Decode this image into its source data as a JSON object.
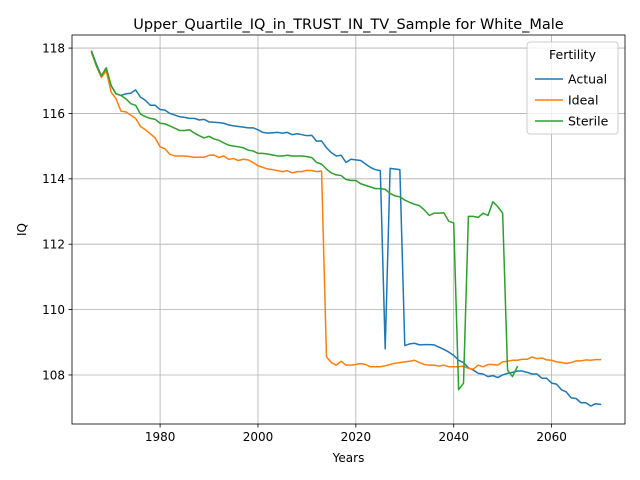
{
  "chart_data": {
    "type": "line",
    "title": "Upper_Quartile_IQ_in_TRUST_IN_TV_Sample for White_Male",
    "xlabel": "Years",
    "ylabel": "IQ",
    "xlim": [
      1962,
      2075
    ],
    "ylim": [
      106.5,
      118.4
    ],
    "xticks": [
      1980,
      2000,
      2020,
      2040,
      2060
    ],
    "yticks": [
      108,
      110,
      112,
      114,
      116,
      118
    ],
    "grid": true,
    "legend": {
      "title": "Fertility",
      "placement": "top-right",
      "entries": [
        "Actual",
        "Ideal",
        "Sterile"
      ]
    },
    "colors": {
      "Actual": "#1f77b4",
      "Ideal": "#ff7f0e",
      "Sterile": "#2ca02c"
    },
    "series": [
      {
        "name": "Actual",
        "points": [
          [
            1966,
            117.9
          ],
          [
            1967,
            117.5
          ],
          [
            1968,
            117.15
          ],
          [
            1969,
            117.35
          ],
          [
            1970,
            116.85
          ],
          [
            1971,
            116.6
          ],
          [
            1972,
            116.55
          ],
          [
            1973,
            116.6
          ],
          [
            1974,
            116.62
          ],
          [
            1975,
            116.72
          ],
          [
            1976,
            116.5
          ],
          [
            1977,
            116.4
          ],
          [
            1978,
            116.25
          ],
          [
            1979,
            116.25
          ],
          [
            1980,
            116.12
          ],
          [
            1981,
            116.1
          ],
          [
            1982,
            116.0
          ],
          [
            1983,
            115.95
          ],
          [
            1984,
            115.9
          ],
          [
            1985,
            115.88
          ],
          [
            1986,
            115.85
          ],
          [
            1987,
            115.85
          ],
          [
            1988,
            115.8
          ],
          [
            1989,
            115.82
          ],
          [
            1990,
            115.74
          ],
          [
            1991,
            115.73
          ],
          [
            1992,
            115.72
          ],
          [
            1993,
            115.7
          ],
          [
            1994,
            115.65
          ],
          [
            1995,
            115.62
          ],
          [
            1996,
            115.6
          ],
          [
            1997,
            115.58
          ],
          [
            1998,
            115.56
          ],
          [
            1999,
            115.56
          ],
          [
            2000,
            115.5
          ],
          [
            2001,
            115.42
          ],
          [
            2002,
            115.4
          ],
          [
            2003,
            115.41
          ],
          [
            2004,
            115.42
          ],
          [
            2005,
            115.4
          ],
          [
            2006,
            115.42
          ],
          [
            2007,
            115.35
          ],
          [
            2008,
            115.38
          ],
          [
            2009,
            115.35
          ],
          [
            2010,
            115.32
          ],
          [
            2011,
            115.33
          ],
          [
            2012,
            115.15
          ],
          [
            2013,
            115.16
          ],
          [
            2014,
            114.95
          ],
          [
            2015,
            114.8
          ],
          [
            2016,
            114.7
          ],
          [
            2017,
            114.72
          ],
          [
            2018,
            114.5
          ],
          [
            2019,
            114.6
          ],
          [
            2020,
            114.58
          ],
          [
            2021,
            114.56
          ],
          [
            2022,
            114.45
          ],
          [
            2023,
            114.35
          ],
          [
            2024,
            114.28
          ],
          [
            2025,
            114.25
          ],
          [
            2026,
            108.8
          ],
          [
            2027,
            114.32
          ],
          [
            2028,
            114.3
          ],
          [
            2029,
            114.28
          ],
          [
            2030,
            108.9
          ],
          [
            2031,
            108.95
          ],
          [
            2032,
            108.97
          ],
          [
            2033,
            108.92
          ],
          [
            2034,
            108.93
          ],
          [
            2035,
            108.93
          ],
          [
            2036,
            108.92
          ],
          [
            2037,
            108.85
          ],
          [
            2038,
            108.78
          ],
          [
            2039,
            108.7
          ],
          [
            2040,
            108.6
          ],
          [
            2041,
            108.45
          ],
          [
            2042,
            108.38
          ],
          [
            2043,
            108.22
          ],
          [
            2044,
            108.15
          ],
          [
            2045,
            108.05
          ],
          [
            2046,
            108.03
          ],
          [
            2047,
            107.95
          ],
          [
            2048,
            107.98
          ],
          [
            2049,
            107.92
          ],
          [
            2050,
            108.0
          ],
          [
            2051,
            108.05
          ],
          [
            2052,
            108.08
          ],
          [
            2053,
            108.12
          ],
          [
            2054,
            108.12
          ],
          [
            2055,
            108.08
          ],
          [
            2056,
            108.03
          ],
          [
            2057,
            108.03
          ],
          [
            2058,
            107.9
          ],
          [
            2059,
            107.9
          ],
          [
            2060,
            107.75
          ],
          [
            2061,
            107.72
          ],
          [
            2062,
            107.55
          ],
          [
            2063,
            107.48
          ],
          [
            2064,
            107.3
          ],
          [
            2065,
            107.28
          ],
          [
            2066,
            107.15
          ],
          [
            2067,
            107.15
          ],
          [
            2068,
            107.05
          ],
          [
            2069,
            107.12
          ],
          [
            2070,
            107.1
          ]
        ]
      },
      {
        "name": "Ideal",
        "points": [
          [
            1966,
            117.85
          ],
          [
            1967,
            117.45
          ],
          [
            1968,
            117.1
          ],
          [
            1969,
            117.3
          ],
          [
            1970,
            116.65
          ],
          [
            1971,
            116.45
          ],
          [
            1972,
            116.07
          ],
          [
            1973,
            116.05
          ],
          [
            1974,
            115.95
          ],
          [
            1975,
            115.85
          ],
          [
            1976,
            115.6
          ],
          [
            1977,
            115.5
          ],
          [
            1978,
            115.38
          ],
          [
            1979,
            115.25
          ],
          [
            1980,
            114.98
          ],
          [
            1981,
            114.92
          ],
          [
            1982,
            114.75
          ],
          [
            1983,
            114.7
          ],
          [
            1984,
            114.7
          ],
          [
            1985,
            114.7
          ],
          [
            1986,
            114.68
          ],
          [
            1987,
            114.66
          ],
          [
            1988,
            114.66
          ],
          [
            1989,
            114.66
          ],
          [
            1990,
            114.72
          ],
          [
            1991,
            114.73
          ],
          [
            1992,
            114.65
          ],
          [
            1993,
            114.7
          ],
          [
            1994,
            114.6
          ],
          [
            1995,
            114.62
          ],
          [
            1996,
            114.56
          ],
          [
            1997,
            114.6
          ],
          [
            1998,
            114.58
          ],
          [
            1999,
            114.5
          ],
          [
            2000,
            114.4
          ],
          [
            2001,
            114.35
          ],
          [
            2002,
            114.3
          ],
          [
            2003,
            114.28
          ],
          [
            2004,
            114.25
          ],
          [
            2005,
            114.22
          ],
          [
            2006,
            114.25
          ],
          [
            2007,
            114.18
          ],
          [
            2008,
            114.22
          ],
          [
            2009,
            114.22
          ],
          [
            2010,
            114.26
          ],
          [
            2011,
            114.25
          ],
          [
            2012,
            114.22
          ],
          [
            2013,
            114.24
          ],
          [
            2014,
            108.55
          ],
          [
            2015,
            108.38
          ],
          [
            2016,
            108.3
          ],
          [
            2017,
            108.42
          ],
          [
            2018,
            108.3
          ],
          [
            2019,
            108.3
          ],
          [
            2020,
            108.32
          ],
          [
            2021,
            108.35
          ],
          [
            2022,
            108.32
          ],
          [
            2023,
            108.25
          ],
          [
            2024,
            108.25
          ],
          [
            2025,
            108.25
          ],
          [
            2026,
            108.28
          ],
          [
            2027,
            108.32
          ],
          [
            2028,
            108.36
          ],
          [
            2029,
            108.38
          ],
          [
            2030,
            108.4
          ],
          [
            2031,
            108.42
          ],
          [
            2032,
            108.45
          ],
          [
            2033,
            108.38
          ],
          [
            2034,
            108.32
          ],
          [
            2035,
            108.3
          ],
          [
            2036,
            108.3
          ],
          [
            2037,
            108.27
          ],
          [
            2038,
            108.3
          ],
          [
            2039,
            108.25
          ],
          [
            2040,
            108.25
          ],
          [
            2041,
            108.25
          ],
          [
            2042,
            108.27
          ],
          [
            2043,
            108.2
          ],
          [
            2044,
            108.18
          ],
          [
            2045,
            108.3
          ],
          [
            2046,
            108.25
          ],
          [
            2047,
            108.32
          ],
          [
            2048,
            108.32
          ],
          [
            2049,
            108.3
          ],
          [
            2050,
            108.4
          ],
          [
            2051,
            108.42
          ],
          [
            2052,
            108.45
          ],
          [
            2053,
            108.45
          ],
          [
            2054,
            108.48
          ],
          [
            2055,
            108.48
          ],
          [
            2056,
            108.55
          ],
          [
            2057,
            108.5
          ],
          [
            2058,
            108.52
          ],
          [
            2059,
            108.46
          ],
          [
            2060,
            108.45
          ],
          [
            2061,
            108.4
          ],
          [
            2062,
            108.38
          ],
          [
            2063,
            108.35
          ],
          [
            2064,
            108.38
          ],
          [
            2065,
            108.43
          ],
          [
            2066,
            108.43
          ],
          [
            2067,
            108.46
          ],
          [
            2068,
            108.45
          ],
          [
            2069,
            108.47
          ],
          [
            2070,
            108.47
          ]
        ]
      },
      {
        "name": "Sterile",
        "points": [
          [
            1966,
            117.9
          ],
          [
            1967,
            117.45
          ],
          [
            1968,
            117.15
          ],
          [
            1969,
            117.4
          ],
          [
            1970,
            116.85
          ],
          [
            1971,
            116.6
          ],
          [
            1972,
            116.55
          ],
          [
            1973,
            116.45
          ],
          [
            1974,
            116.3
          ],
          [
            1975,
            116.25
          ],
          [
            1976,
            115.98
          ],
          [
            1977,
            115.9
          ],
          [
            1978,
            115.85
          ],
          [
            1979,
            115.82
          ],
          [
            1980,
            115.7
          ],
          [
            1981,
            115.68
          ],
          [
            1982,
            115.62
          ],
          [
            1983,
            115.55
          ],
          [
            1984,
            115.48
          ],
          [
            1985,
            115.48
          ],
          [
            1986,
            115.5
          ],
          [
            1987,
            115.4
          ],
          [
            1988,
            115.32
          ],
          [
            1989,
            115.25
          ],
          [
            1990,
            115.3
          ],
          [
            1991,
            115.22
          ],
          [
            1992,
            115.18
          ],
          [
            1993,
            115.1
          ],
          [
            1994,
            115.03
          ],
          [
            1995,
            115.0
          ],
          [
            1996,
            114.98
          ],
          [
            1997,
            114.95
          ],
          [
            1998,
            114.88
          ],
          [
            1999,
            114.85
          ],
          [
            2000,
            114.78
          ],
          [
            2001,
            114.78
          ],
          [
            2002,
            114.76
          ],
          [
            2003,
            114.73
          ],
          [
            2004,
            114.7
          ],
          [
            2005,
            114.7
          ],
          [
            2006,
            114.72
          ],
          [
            2007,
            114.7
          ],
          [
            2008,
            114.7
          ],
          [
            2009,
            114.7
          ],
          [
            2010,
            114.68
          ],
          [
            2011,
            114.65
          ],
          [
            2012,
            114.5
          ],
          [
            2013,
            114.45
          ],
          [
            2014,
            114.3
          ],
          [
            2015,
            114.18
          ],
          [
            2016,
            114.12
          ],
          [
            2017,
            114.1
          ],
          [
            2018,
            113.98
          ],
          [
            2019,
            113.95
          ],
          [
            2020,
            113.95
          ],
          [
            2021,
            113.85
          ],
          [
            2022,
            113.8
          ],
          [
            2023,
            113.75
          ],
          [
            2024,
            113.7
          ],
          [
            2025,
            113.7
          ],
          [
            2026,
            113.68
          ],
          [
            2027,
            113.55
          ],
          [
            2028,
            113.48
          ],
          [
            2029,
            113.45
          ],
          [
            2030,
            113.35
          ],
          [
            2031,
            113.28
          ],
          [
            2032,
            113.22
          ],
          [
            2033,
            113.18
          ],
          [
            2034,
            113.05
          ],
          [
            2035,
            112.88
          ],
          [
            2036,
            112.95
          ],
          [
            2037,
            112.95
          ],
          [
            2038,
            112.96
          ],
          [
            2039,
            112.7
          ],
          [
            2040,
            112.65
          ],
          [
            2041,
            107.55
          ],
          [
            2042,
            107.75
          ],
          [
            2043,
            112.85
          ],
          [
            2044,
            112.85
          ],
          [
            2045,
            112.82
          ],
          [
            2046,
            112.95
          ],
          [
            2047,
            112.88
          ],
          [
            2048,
            113.3
          ],
          [
            2049,
            113.15
          ],
          [
            2050,
            112.95
          ],
          [
            2051,
            108.15
          ],
          [
            2052,
            107.95
          ],
          [
            2053,
            108.25
          ]
        ]
      }
    ]
  }
}
